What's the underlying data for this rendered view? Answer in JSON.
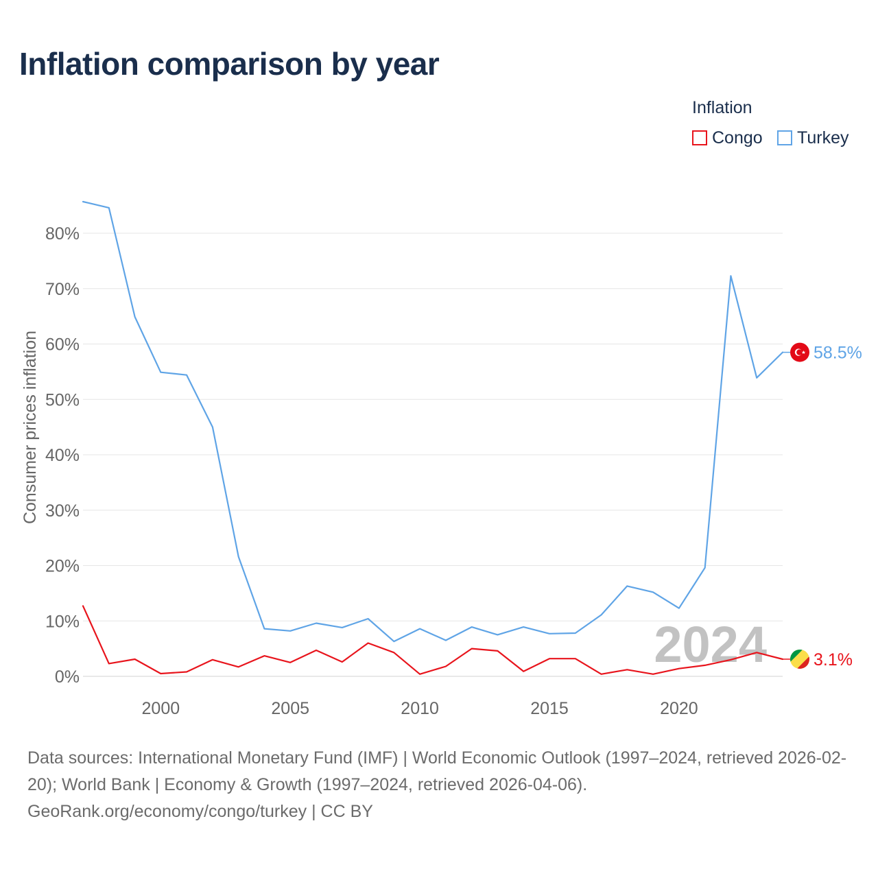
{
  "title": "Inflation comparison by year",
  "legend": {
    "title": "Inflation",
    "items": [
      {
        "name": "Congo",
        "color": "#e8141c"
      },
      {
        "name": "Turkey",
        "color": "#5fa4e6"
      }
    ]
  },
  "chart_data": {
    "type": "line",
    "ylabel": "Consumer prices inflation",
    "xlabel": "",
    "xlim": [
      1997,
      2024
    ],
    "ylim": [
      0,
      80
    ],
    "y_ticks": [
      0,
      10,
      20,
      30,
      40,
      50,
      60,
      70,
      80
    ],
    "y_tick_labels": [
      "0%",
      "10%",
      "20%",
      "30%",
      "40%",
      "50%",
      "60%",
      "70%",
      "80%"
    ],
    "x_ticks": [
      2000,
      2005,
      2010,
      2015,
      2020
    ],
    "x_tick_labels": [
      "2000",
      "2005",
      "2010",
      "2015",
      "2020"
    ],
    "grid": true,
    "x": [
      1997,
      1998,
      1999,
      2000,
      2001,
      2002,
      2003,
      2004,
      2005,
      2006,
      2007,
      2008,
      2009,
      2010,
      2011,
      2012,
      2013,
      2014,
      2015,
      2016,
      2017,
      2018,
      2019,
      2020,
      2021,
      2022,
      2023,
      2024
    ],
    "series": [
      {
        "name": "Turkey",
        "color": "#5fa4e6",
        "values": [
          85.7,
          84.6,
          64.9,
          54.9,
          54.4,
          45.0,
          21.6,
          8.6,
          8.2,
          9.6,
          8.8,
          10.4,
          6.3,
          8.6,
          6.5,
          8.9,
          7.5,
          8.9,
          7.7,
          7.8,
          11.1,
          16.3,
          15.2,
          12.3,
          19.6,
          72.3,
          53.9,
          58.5
        ],
        "end_label": "58.5%"
      },
      {
        "name": "Congo",
        "color": "#e8141c",
        "values": [
          12.7,
          2.3,
          3.1,
          0.5,
          0.8,
          3.0,
          1.7,
          3.7,
          2.5,
          4.7,
          2.6,
          6.0,
          4.3,
          0.4,
          1.8,
          5.0,
          4.6,
          0.9,
          3.2,
          3.2,
          0.4,
          1.2,
          0.4,
          1.4,
          2.0,
          3.0,
          4.3,
          3.1
        ],
        "end_label": "3.1%"
      }
    ],
    "annotation": "2024"
  },
  "sources": {
    "line1": "Data sources: International Monetary Fund (IMF) | World Economic Outlook (1997–2024, retrieved 2026-02-20); World Bank | Economy & Growth (1997–2024, retrieved 2026-04-06).",
    "line2": "GeoRank.org/economy/congo/turkey | CC BY"
  },
  "colors": {
    "title": "#1a2e4c",
    "axis_text": "#666666",
    "grid": "#e6e6e6",
    "watermark": "#c2c2c2"
  }
}
